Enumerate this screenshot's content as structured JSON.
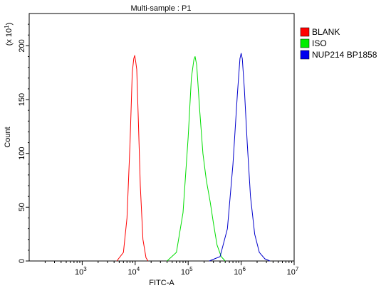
{
  "chart_data": {
    "type": "line",
    "title": "Multi-sample : P1",
    "xlabel": "FITC-A",
    "ylabel": "Count",
    "y_multiplier_label": "(x 10",
    "y_multiplier_exp": "1",
    "x_scale": "log",
    "xlim": [
      100,
      10000000
    ],
    "ylim": [
      0,
      230
    ],
    "x_ticks": [
      {
        "value": 1000,
        "base": "10",
        "exp": "3"
      },
      {
        "value": 10000,
        "base": "10",
        "exp": "4"
      },
      {
        "value": 100000,
        "base": "10",
        "exp": "5"
      },
      {
        "value": 1000000,
        "base": "10",
        "exp": "6"
      },
      {
        "value": 10000000,
        "base": "10",
        "exp": "7"
      }
    ],
    "y_ticks": [
      {
        "value": 0,
        "label": "0"
      },
      {
        "value": 50,
        "label": "50"
      },
      {
        "value": 100,
        "label": "100"
      },
      {
        "value": 150,
        "label": "150"
      },
      {
        "value": 200,
        "label": "200"
      }
    ],
    "grid": false,
    "legend_position": "right",
    "series": [
      {
        "name": "BLANK",
        "color": "#ff0000",
        "legend_color": "#ff0000",
        "x": [
          4500,
          6000,
          7000,
          8000,
          8800,
          9400,
          9800,
          10200,
          10700,
          11500,
          12500,
          14000,
          16000,
          17500
        ],
        "y": [
          0,
          8,
          40,
          110,
          175,
          188,
          191,
          186,
          178,
          130,
          70,
          20,
          3,
          0
        ]
      },
      {
        "name": "ISO",
        "color": "#00dd00",
        "legend_color": "#00ee00",
        "x": [
          40000,
          60000,
          80000,
          100000,
          115000,
          128000,
          135000,
          145000,
          165000,
          190000,
          220000,
          260000,
          300000,
          350000,
          420000,
          500000
        ],
        "y": [
          0,
          8,
          45,
          115,
          170,
          187,
          190,
          182,
          140,
          100,
          75,
          55,
          35,
          15,
          4,
          0
        ]
      },
      {
        "name": "NUP214 BP1858",
        "color": "#0000cc",
        "legend_color": "#0000ee",
        "x": [
          250000,
          400000,
          550000,
          700000,
          850000,
          950000,
          1000000,
          1050000,
          1150000,
          1300000,
          1500000,
          1800000,
          2200000,
          2800000,
          3500000
        ],
        "y": [
          0,
          4,
          30,
          90,
          155,
          188,
          193,
          188,
          160,
          110,
          60,
          25,
          8,
          2,
          0
        ]
      }
    ]
  }
}
